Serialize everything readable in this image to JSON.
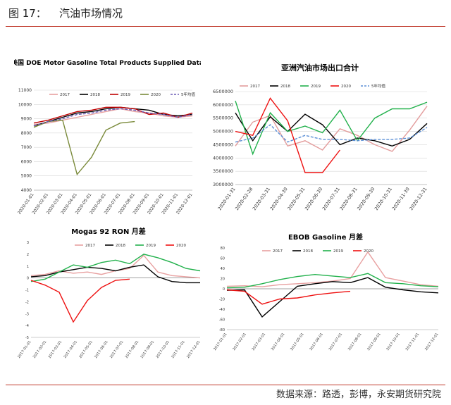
{
  "header": {
    "figure_label": "图 17：",
    "topic": "汽油市场情况"
  },
  "footer": {
    "source": "数据来源：路透，彭博，永安期货研究院"
  },
  "colors": {
    "2017": "#e8a0a0",
    "2018": "#000000",
    "2019": "#c00000",
    "2020": "#7a8a3a",
    "avg5": "#6b5bb5",
    "rule": "#c0392b"
  },
  "chart_data": [
    {
      "type": "line",
      "title": "美国 DOE Motor Gasoline Total Products Supplied Data",
      "ylim": [
        4000,
        11000
      ],
      "yticks": [
        "4000",
        "5000",
        "6000",
        "7000",
        "8000",
        "9000",
        "10000",
        "11000"
      ],
      "xticks": [
        "2020-01-01",
        "2020-02-01",
        "2020-03-01",
        "2020-04-01",
        "2020-05-01",
        "2020-06-01",
        "2020-07-01",
        "2020-08-01",
        "2020-09-01",
        "2020-10-01",
        "2020-11-01",
        "2020-12-01"
      ],
      "series": [
        {
          "name": "2017",
          "color": "#e8a0a0",
          "values": [
            8600,
            8700,
            8900,
            9100,
            9300,
            9500,
            9700,
            9500,
            9400,
            9200,
            9100,
            9200
          ]
        },
        {
          "name": "2018",
          "color": "#000000",
          "values": [
            8500,
            8800,
            9100,
            9400,
            9500,
            9700,
            9800,
            9700,
            9600,
            9300,
            9200,
            9300
          ]
        },
        {
          "name": "2019",
          "color": "#c00000",
          "values": [
            8700,
            8900,
            9200,
            9500,
            9600,
            9800,
            9800,
            9700,
            9300,
            9400,
            9100,
            9400
          ]
        },
        {
          "name": "2020",
          "color": "#7a8a3a",
          "values": [
            8400,
            8800,
            8900,
            5100,
            6300,
            8200,
            8700,
            8800,
            null,
            null,
            null,
            null
          ]
        },
        {
          "name": "5年均值",
          "color": "#6b5bb5",
          "dashed": true,
          "values": [
            8500,
            8800,
            9000,
            9300,
            9400,
            9600,
            9700,
            9600,
            9400,
            9300,
            9100,
            9300
          ]
        }
      ]
    },
    {
      "type": "line",
      "title": "亚洲汽油市场出口合计",
      "ylim": [
        3000000,
        6500000
      ],
      "yticks": [
        "3000000",
        "3500000",
        "4000000",
        "4500000",
        "5000000",
        "5500000",
        "6000000",
        "6500000"
      ],
      "xticks": [
        "2020-01-31",
        "2020-02-28",
        "2020-03-31",
        "2020-04-30",
        "2020-05-31",
        "2020-06-30",
        "2020-07-31",
        "2020-08-31",
        "2020-09-30",
        "2020-10-31",
        "2020-11-30",
        "2020-12-31"
      ],
      "series": [
        {
          "name": "2017",
          "color": "#e39c9c",
          "values": [
            4450000,
            5350000,
            5600000,
            4450000,
            4650000,
            4300000,
            5100000,
            4850000,
            4500000,
            4250000,
            5050000,
            5950000
          ]
        },
        {
          "name": "2018",
          "color": "#000000",
          "values": [
            5700000,
            4650000,
            5550000,
            5000000,
            5650000,
            5250000,
            4500000,
            4750000,
            4650000,
            4450000,
            4700000,
            5300000
          ]
        },
        {
          "name": "2019",
          "color": "#22b14c",
          "values": [
            6150000,
            4150000,
            5700000,
            5000000,
            5200000,
            4950000,
            5800000,
            4650000,
            5500000,
            5850000,
            5850000,
            6100000
          ]
        },
        {
          "name": "2020",
          "color": "#ee1111",
          "values": [
            5000000,
            4850000,
            6250000,
            5400000,
            3450000,
            3450000,
            4300000,
            null,
            null,
            null,
            null,
            null
          ]
        },
        {
          "name": "5年均值",
          "color": "#5b8fd6",
          "dashed": true,
          "values": [
            4600000,
            4750000,
            5250000,
            4600000,
            4850000,
            4700000,
            4700000,
            4650000,
            4700000,
            4700000,
            4750000,
            5150000
          ]
        }
      ]
    },
    {
      "type": "line",
      "title": "Mogas 92 RON 月差",
      "ylim": [
        -5,
        3
      ],
      "yticks": [
        "-5",
        "-4",
        "-3",
        "-2",
        "-1",
        "0",
        "1",
        "2",
        "3"
      ],
      "xticks": [
        "2017-01-01",
        "2017-02-01",
        "2017-03-01",
        "2017-04-01",
        "2017-05-01",
        "2017-06-01",
        "2017-07-01",
        "2017-08-01",
        "2017-09-01",
        "2017-10-01",
        "2017-11-01",
        "2017-12-01"
      ],
      "series": [
        {
          "name": "2017",
          "color": "#e8a0a0",
          "values": [
            0.2,
            0.3,
            0.6,
            0.4,
            0.5,
            0.3,
            0.6,
            0.8,
            1.9,
            0.5,
            0.2,
            0.1,
            0.0
          ]
        },
        {
          "name": "2018",
          "color": "#000000",
          "values": [
            0.1,
            0.2,
            0.5,
            0.7,
            0.9,
            0.8,
            0.6,
            0.9,
            1.1,
            0.1,
            -0.3,
            -0.4,
            -0.4
          ]
        },
        {
          "name": "2019",
          "color": "#22b14c",
          "values": [
            -0.3,
            -0.1,
            0.5,
            1.1,
            0.9,
            1.3,
            1.5,
            1.2,
            2.0,
            1.7,
            1.3,
            0.8,
            0.6
          ]
        },
        {
          "name": "2020",
          "color": "#ee1111",
          "values": [
            -0.2,
            -0.6,
            -1.2,
            -3.7,
            -1.9,
            -0.8,
            -0.2,
            -0.1,
            null,
            null,
            null,
            null,
            null
          ]
        }
      ]
    },
    {
      "type": "line",
      "title": "EBOB Gasoline 月差",
      "ylim": [
        -80,
        80
      ],
      "yticks": [
        "-80",
        "-60",
        "-40",
        "-20",
        "0",
        "20",
        "40",
        "60",
        "80"
      ],
      "xticks": [
        "2017-01-01",
        "2017-02-01",
        "2017-03-01",
        "2017-04-01",
        "2017-05-01",
        "2017-06-01",
        "2017-07-01",
        "2017-08-01",
        "2017-09-01",
        "2017-10-01",
        "2017-11-01",
        "2017-12-01"
      ],
      "series": [
        {
          "name": "2017",
          "color": "#e8a0a0",
          "values": [
            5,
            6,
            4,
            8,
            10,
            12,
            15,
            20,
            72,
            22,
            15,
            8,
            5
          ]
        },
        {
          "name": "2018",
          "color": "#000000",
          "values": [
            -3,
            -2,
            -55,
            -25,
            5,
            10,
            14,
            12,
            22,
            3,
            -2,
            -6,
            -8
          ]
        },
        {
          "name": "2019",
          "color": "#22b14c",
          "values": [
            2,
            3,
            10,
            18,
            24,
            28,
            25,
            22,
            30,
            12,
            10,
            6,
            4
          ]
        },
        {
          "name": "2020",
          "color": "#ee1111",
          "values": [
            -2,
            -5,
            -30,
            -20,
            -18,
            -12,
            -8,
            -5,
            null,
            null,
            null,
            null,
            null
          ]
        }
      ]
    }
  ]
}
